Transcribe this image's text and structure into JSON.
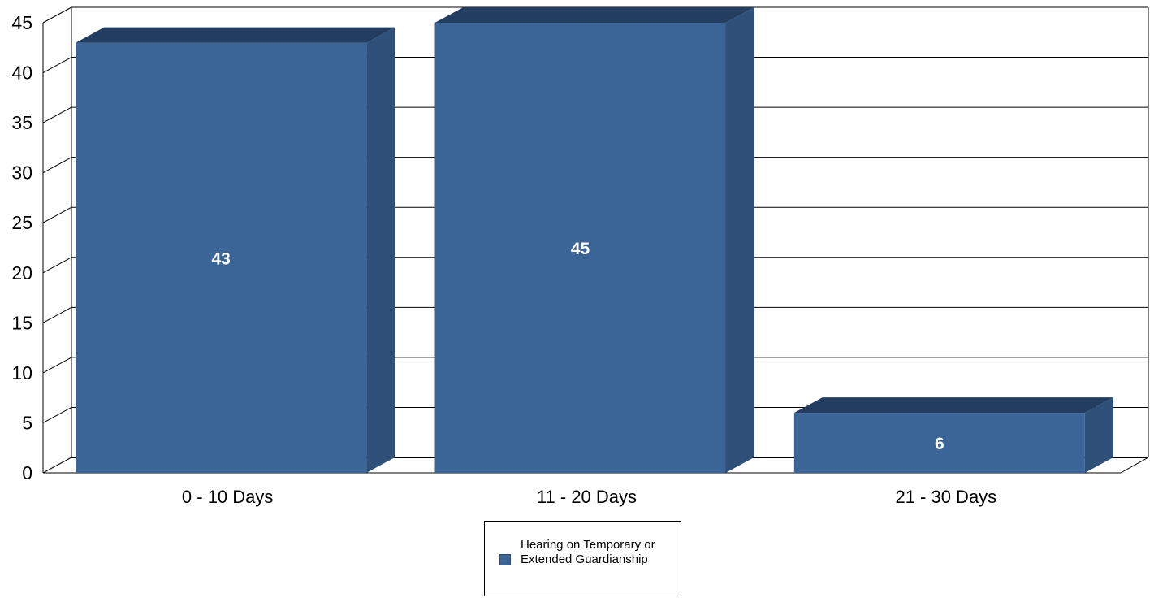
{
  "chart_data": {
    "type": "bar",
    "style": "3d",
    "categories": [
      "0 - 10 Days",
      "11 - 20 Days",
      "21 - 30 Days"
    ],
    "series": [
      {
        "name": "Hearing on Temporary or Extended Guardianship",
        "values": [
          43,
          45,
          6
        ]
      }
    ],
    "data_labels": [
      "43",
      "45",
      "6"
    ],
    "y_ticks": [
      "0",
      "5",
      "10",
      "15",
      "20",
      "25",
      "30",
      "35",
      "40",
      "45"
    ],
    "ylim": [
      0,
      45
    ],
    "grid": true,
    "legend_position": "bottom",
    "title": "",
    "xlabel": "",
    "ylabel": ""
  },
  "colors": {
    "bar_front": "#3b6596",
    "bar_side": "#2e5079",
    "bar_top": "#223d5f",
    "grid": "#000000",
    "text": "#000000",
    "label": "#ffffff"
  }
}
